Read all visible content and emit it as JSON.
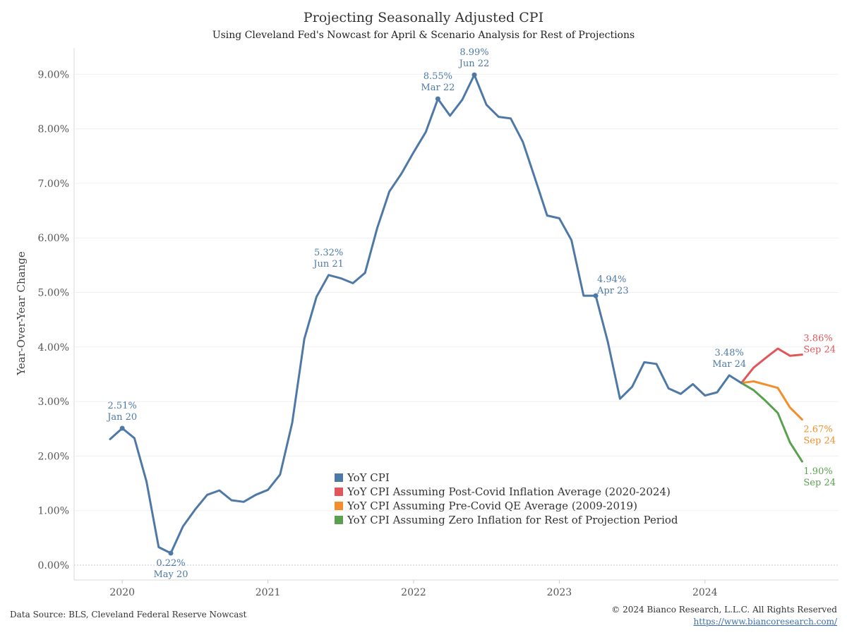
{
  "title": "Projecting Seasonally Adjusted CPI",
  "subtitle": "Using Cleveland Fed's Nowcast for April & Scenario Analysis for Rest of Projections",
  "footer": {
    "source": "Data Source: BLS, Cleveland Federal Reserve Nowcast",
    "copyright": "© 2024 Bianco Research, L.L.C. All Rights Reserved",
    "url": "https://www.biancoresearch.com/"
  },
  "chart_data": {
    "type": "line",
    "ylabel": "Year-Over-Year Change",
    "xlabel": "",
    "ylim": [
      0,
      9.0
    ],
    "yticks": [
      "0.00%",
      "1.00%",
      "2.00%",
      "3.00%",
      "4.00%",
      "5.00%",
      "6.00%",
      "7.00%",
      "8.00%",
      "9.00%"
    ],
    "xticks": [
      "2020",
      "2021",
      "2022",
      "2023",
      "2024"
    ],
    "grid": true,
    "legend_position": "center-bottom",
    "colors": {
      "YoY CPI": "#4e79a7",
      "post": "#e15759",
      "pre": "#f28e2b",
      "zero": "#59a14f"
    },
    "series": [
      {
        "name": "YoY CPI",
        "color": "#4e79a7",
        "x": [
          "2019-12",
          "2020-01",
          "2020-02",
          "2020-03",
          "2020-04",
          "2020-05",
          "2020-06",
          "2020-07",
          "2020-08",
          "2020-09",
          "2020-10",
          "2020-11",
          "2020-12",
          "2021-01",
          "2021-02",
          "2021-03",
          "2021-04",
          "2021-05",
          "2021-06",
          "2021-07",
          "2021-08",
          "2021-09",
          "2021-10",
          "2021-11",
          "2021-12",
          "2022-01",
          "2022-02",
          "2022-03",
          "2022-04",
          "2022-05",
          "2022-06",
          "2022-07",
          "2022-08",
          "2022-09",
          "2022-10",
          "2022-11",
          "2022-12",
          "2023-01",
          "2023-02",
          "2023-03",
          "2023-04",
          "2023-05",
          "2023-06",
          "2023-07",
          "2023-08",
          "2023-09",
          "2023-10",
          "2023-11",
          "2023-12",
          "2024-01",
          "2024-02",
          "2024-03",
          "2024-04"
        ],
        "values": [
          2.31,
          2.51,
          2.33,
          1.53,
          0.33,
          0.22,
          0.71,
          1.02,
          1.29,
          1.37,
          1.19,
          1.16,
          1.29,
          1.38,
          1.66,
          2.61,
          4.15,
          4.92,
          5.32,
          5.26,
          5.17,
          5.36,
          6.18,
          6.85,
          7.18,
          7.57,
          7.94,
          8.55,
          8.24,
          8.53,
          8.99,
          8.44,
          8.22,
          8.19,
          7.76,
          7.09,
          6.41,
          6.36,
          5.96,
          4.94,
          4.94,
          4.09,
          3.05,
          3.27,
          3.72,
          3.69,
          3.24,
          3.14,
          3.32,
          3.11,
          3.17,
          3.48,
          3.34
        ]
      },
      {
        "name": "YoY CPI Assuming Post-Covid Inflation Average (2020-2024)",
        "color": "#e15759",
        "x": [
          "2024-04",
          "2024-05",
          "2024-06",
          "2024-07",
          "2024-08",
          "2024-09"
        ],
        "values": [
          3.34,
          3.62,
          3.8,
          3.97,
          3.84,
          3.86
        ]
      },
      {
        "name": "YoY CPI Assuming Pre-Covid QE Average (2009-2019)",
        "color": "#f28e2b",
        "x": [
          "2024-04",
          "2024-05",
          "2024-06",
          "2024-07",
          "2024-08",
          "2024-09"
        ],
        "values": [
          3.34,
          3.37,
          3.31,
          3.25,
          2.89,
          2.67
        ]
      },
      {
        "name": "YoY CPI Assuming Zero Inflation for Rest of Projection Period",
        "color": "#59a14f",
        "x": [
          "2024-04",
          "2024-05",
          "2024-06",
          "2024-07",
          "2024-08",
          "2024-09"
        ],
        "values": [
          3.34,
          3.21,
          3.01,
          2.79,
          2.25,
          1.9
        ]
      }
    ],
    "annotations": [
      {
        "value": "2.51%",
        "date": "Jan 20",
        "x": "2020-01",
        "y": 2.51,
        "color": "#4e79a7",
        "pos": "above",
        "marker": true
      },
      {
        "value": "0.22%",
        "date": "May 20",
        "x": "2020-05",
        "y": 0.22,
        "color": "#4e79a7",
        "pos": "below",
        "marker": true
      },
      {
        "value": "5.32%",
        "date": "Jun 21",
        "x": "2021-06",
        "y": 5.32,
        "color": "#4e79a7",
        "pos": "above",
        "marker": false
      },
      {
        "value": "8.55%",
        "date": "Mar 22",
        "x": "2022-03",
        "y": 8.55,
        "color": "#4e79a7",
        "pos": "above",
        "marker": true
      },
      {
        "value": "8.99%",
        "date": "Jun 22",
        "x": "2022-06",
        "y": 8.99,
        "color": "#4e79a7",
        "pos": "above",
        "marker": true
      },
      {
        "value": "4.94%",
        "date": "Apr 23",
        "x": "2023-04",
        "y": 4.94,
        "color": "#4e79a7",
        "pos": "right",
        "marker": true
      },
      {
        "value": "3.48%",
        "date": "Mar 24",
        "x": "2024-03",
        "y": 3.48,
        "color": "#4e79a7",
        "pos": "above",
        "marker": false
      },
      {
        "value": "3.86%",
        "date": "Sep 24",
        "x": "2024-09",
        "y": 3.86,
        "color": "#e15759",
        "pos": "right",
        "marker": false
      },
      {
        "value": "2.67%",
        "date": "Sep 24",
        "x": "2024-09",
        "y": 2.67,
        "color": "#f28e2b",
        "pos": "belowright",
        "marker": false
      },
      {
        "value": "1.90%",
        "date": "Sep 24",
        "x": "2024-09",
        "y": 1.9,
        "color": "#59a14f",
        "pos": "belowright",
        "marker": false
      }
    ],
    "legend": [
      {
        "label": "YoY CPI",
        "color": "#4e79a7"
      },
      {
        "label": "YoY CPI Assuming Post-Covid Inflation Average (2020-2024)",
        "color": "#e15759"
      },
      {
        "label": "YoY CPI Assuming Pre-Covid QE Average (2009-2019)",
        "color": "#f28e2b"
      },
      {
        "label": "YoY CPI Assuming Zero Inflation for Rest of Projection Period",
        "color": "#59a14f"
      }
    ]
  }
}
